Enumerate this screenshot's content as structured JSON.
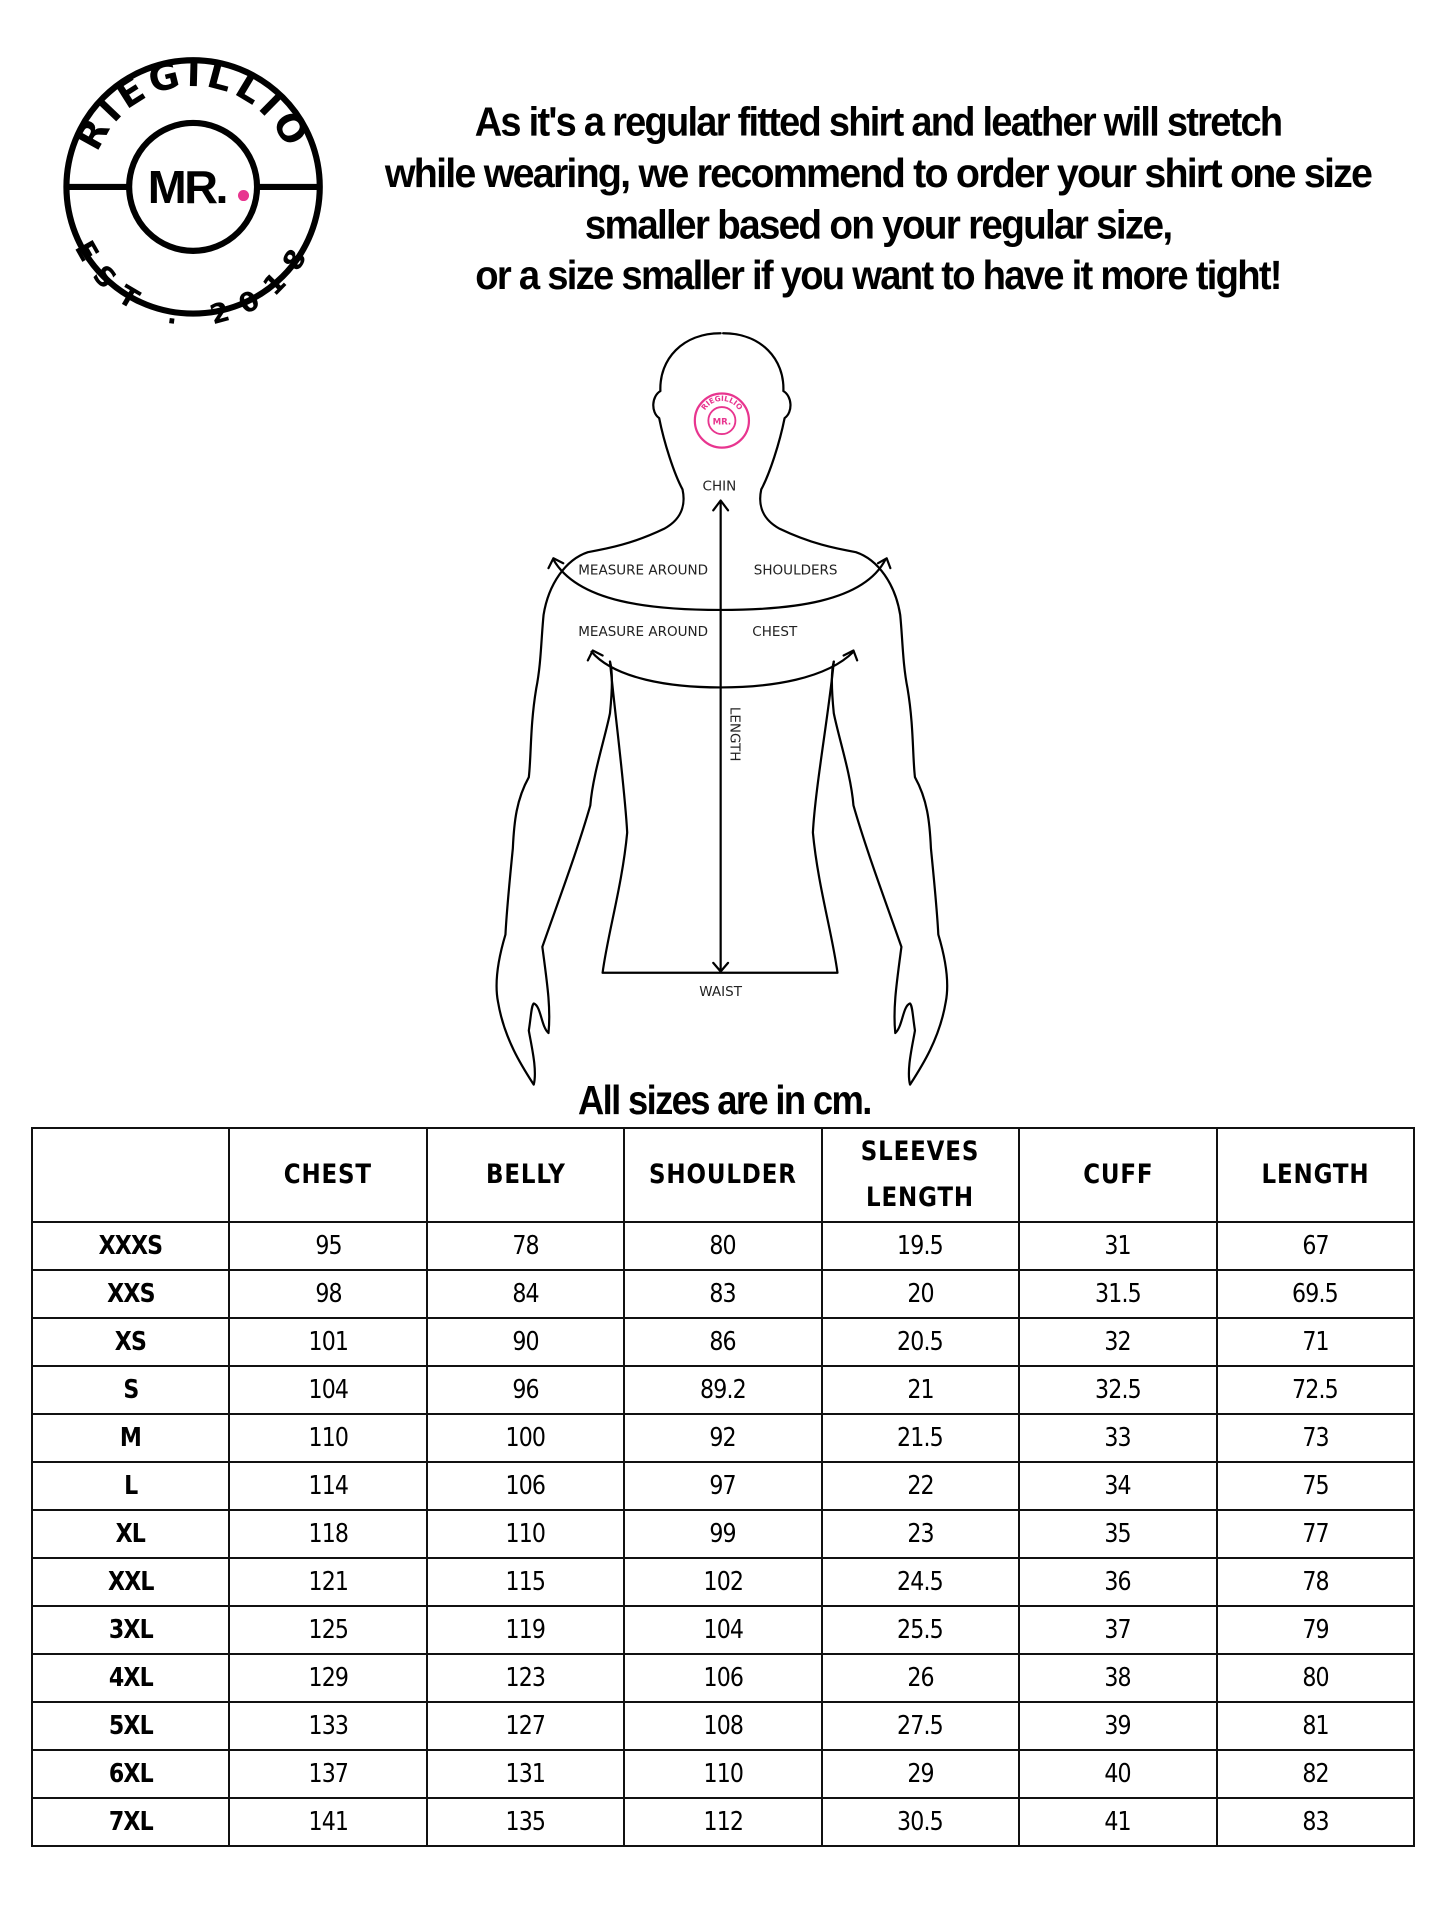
{
  "logo": {
    "brand": "RIEGILLIO",
    "mark": "MR.",
    "established": "EST . 2018",
    "accent_color": "#e8358f"
  },
  "notice": {
    "lines": [
      "As it's a regular fitted shirt and leather will stretch",
      "while wearing, we recommend to order your shirt one size",
      "smaller based on your regular size,",
      "or a size smaller if you want to have it more tight!"
    ]
  },
  "diagram": {
    "chin": "CHIN",
    "measure_around_1": "MEASURE AROUND",
    "shoulders": "SHOULDERS",
    "measure_around_2": "MEASURE AROUND",
    "chest": "CHEST",
    "length": "LENGTH",
    "waist": "WAIST"
  },
  "units_note": "All sizes are in cm.",
  "size_table": {
    "columns": [
      "",
      "CHEST",
      "BELLY",
      "SHOULDER",
      "SLEEVES LENGTH",
      "CUFF",
      "LENGTH"
    ],
    "rows": [
      [
        "XXXS",
        "95",
        "78",
        "80",
        "19.5",
        "31",
        "67"
      ],
      [
        "XXS",
        "98",
        "84",
        "83",
        "20",
        "31.5",
        "69.5"
      ],
      [
        "XS",
        "101",
        "90",
        "86",
        "20.5",
        "32",
        "71"
      ],
      [
        "S",
        "104",
        "96",
        "89.2",
        "21",
        "32.5",
        "72.5"
      ],
      [
        "M",
        "110",
        "100",
        "92",
        "21.5",
        "33",
        "73"
      ],
      [
        "L",
        "114",
        "106",
        "97",
        "22",
        "34",
        "75"
      ],
      [
        "XL",
        "118",
        "110",
        "99",
        "23",
        "35",
        "77"
      ],
      [
        "XXL",
        "121",
        "115",
        "102",
        "24.5",
        "36",
        "78"
      ],
      [
        "3XL",
        "125",
        "119",
        "104",
        "25.5",
        "37",
        "79"
      ],
      [
        "4XL",
        "129",
        "123",
        "106",
        "26",
        "38",
        "80"
      ],
      [
        "5XL",
        "133",
        "127",
        "108",
        "27.5",
        "39",
        "81"
      ],
      [
        "6XL",
        "137",
        "131",
        "110",
        "29",
        "40",
        "82"
      ],
      [
        "7XL",
        "141",
        "135",
        "112",
        "30.5",
        "41",
        "83"
      ]
    ]
  }
}
